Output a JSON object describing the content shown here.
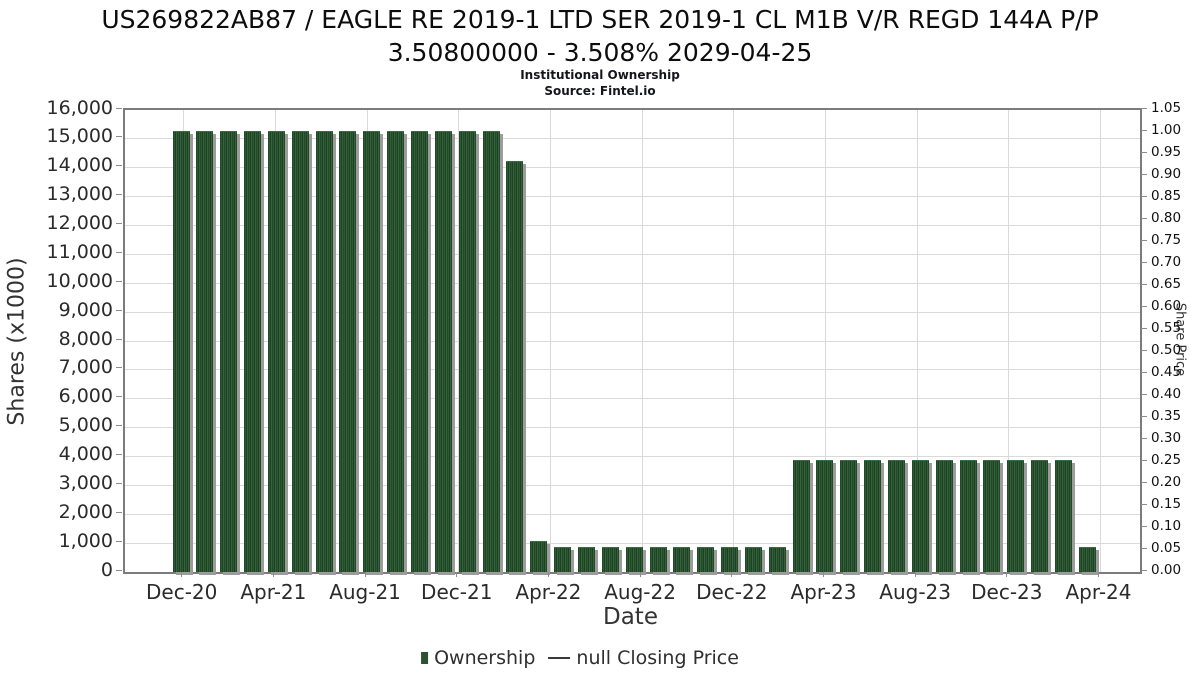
{
  "title": {
    "line1": "US269822AB87 / EAGLE RE 2019-1 LTD SER 2019-1 CL M1B V/R REGD 144A P/P",
    "line2": "3.50800000 - 3.508% 2029-04-25"
  },
  "subtitle": "Institutional Ownership",
  "source": "Source: Fintel.io",
  "chart_data": {
    "type": "bar",
    "title": "US269822AB87 / EAGLE RE 2019-1 LTD SER 2019-1 CL M1B V/R REGD 144A P/P 3.50800000 - 3.508% 2029-04-25",
    "subtitle": "Institutional Ownership",
    "source_note": "Source: Fintel.io",
    "xlabel": "Date",
    "ylabel_left": "Shares (x1000)",
    "ylabel_right": "Share Price",
    "grid": true,
    "legend_position": "bottom",
    "y_left_axis": {
      "min": 0,
      "max": 16000,
      "step": 1000
    },
    "y_right_axis": {
      "min": 0.0,
      "max": 1.05,
      "step": 0.05
    },
    "x_tick_labels": [
      "Dec-20",
      "Apr-21",
      "Aug-21",
      "Dec-21",
      "Apr-22",
      "Aug-22",
      "Dec-22",
      "Apr-23",
      "Aug-23",
      "Dec-23",
      "Apr-24"
    ],
    "categories": [
      "Dec-20",
      "Jan-21",
      "Feb-21",
      "Mar-21",
      "Apr-21",
      "May-21",
      "Jun-21",
      "Jul-21",
      "Aug-21",
      "Sep-21",
      "Oct-21",
      "Nov-21",
      "Dec-21",
      "Jan-22",
      "Feb-22",
      "Mar-22",
      "Apr-22",
      "May-22",
      "Jun-22",
      "Jul-22",
      "Aug-22",
      "Sep-22",
      "Oct-22",
      "Nov-22",
      "Dec-22",
      "Jan-23",
      "Feb-23",
      "Mar-23",
      "Apr-23",
      "May-23",
      "Jun-23",
      "Jul-23",
      "Aug-23",
      "Sep-23",
      "Oct-23",
      "Nov-23",
      "Dec-23",
      "Jan-24",
      "Feb-24"
    ],
    "series": [
      {
        "name": "Ownership",
        "units": "shares x1000",
        "color": "#2d5232",
        "values": [
          15250,
          15250,
          15250,
          15250,
          15250,
          15250,
          15250,
          15250,
          15250,
          15250,
          15250,
          15250,
          15250,
          15250,
          14200,
          1050,
          830,
          830,
          830,
          830,
          830,
          830,
          830,
          830,
          830,
          830,
          3850,
          3850,
          3850,
          3850,
          3850,
          3850,
          3850,
          3850,
          3850,
          3850,
          3850,
          3850,
          830
        ]
      },
      {
        "name": "null Closing Price",
        "units": "share price",
        "color": "#3a3a3a",
        "values": []
      }
    ],
    "legend": [
      {
        "label": "Ownership",
        "marker": "square",
        "color": "#2d5232"
      },
      {
        "label": "null Closing Price",
        "marker": "line",
        "color": "#3a3a3a"
      }
    ]
  },
  "colors": {
    "bar": "#2d5232",
    "bar_shadow": "#9c9c9c",
    "grid": "#dadada",
    "plot_border": "#7c7c7c",
    "text": "#2b2b2b"
  }
}
